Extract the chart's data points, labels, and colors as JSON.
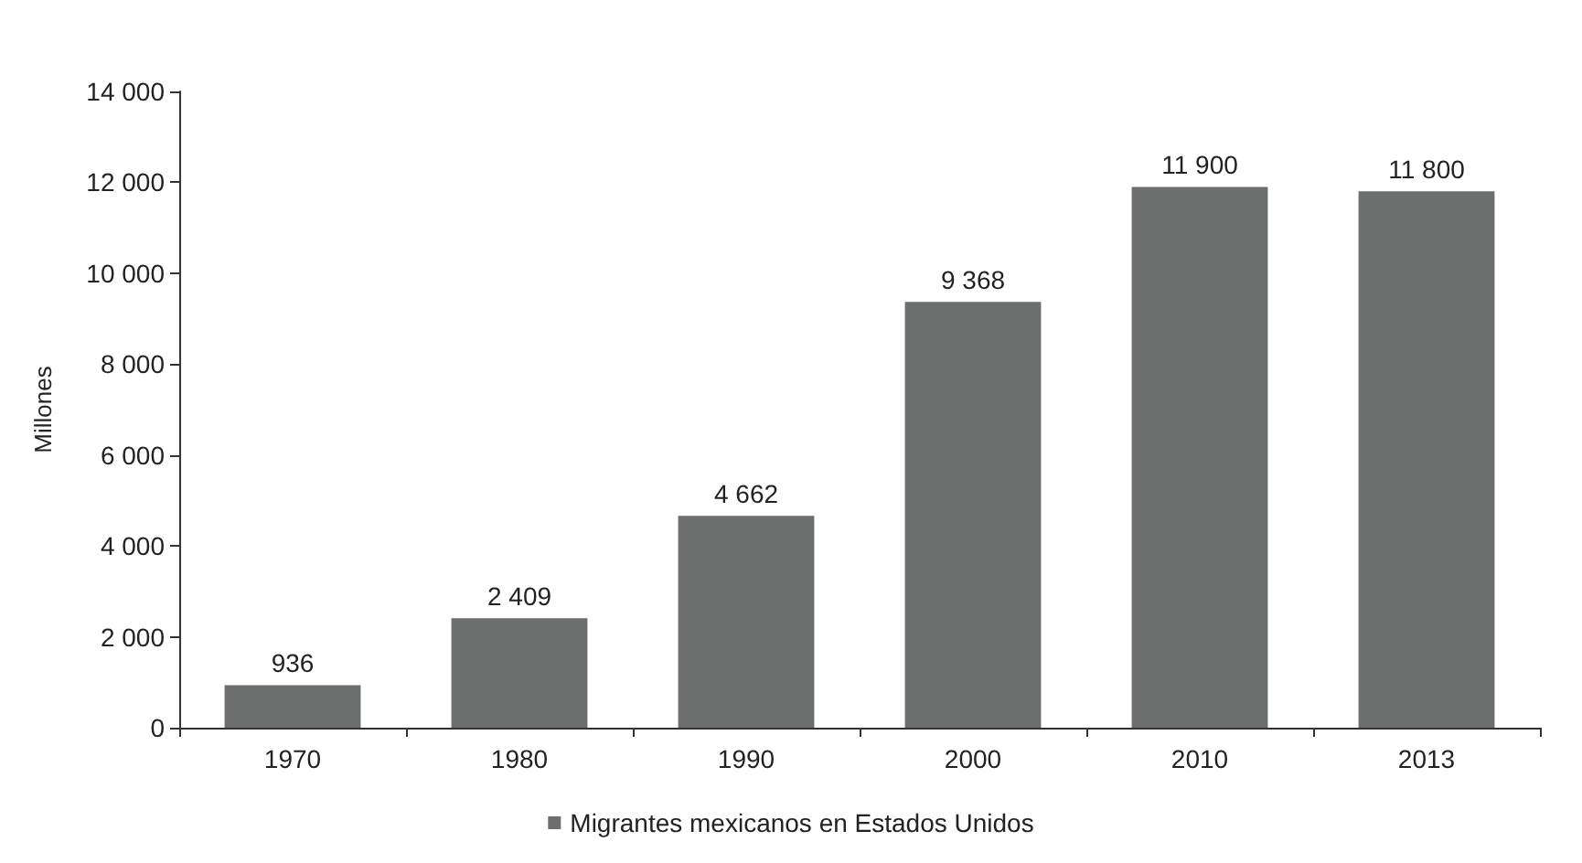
{
  "chart_data": {
    "type": "bar",
    "ylabel": "Millones",
    "categories": [
      "1970",
      "1980",
      "1990",
      "2000",
      "2010",
      "2013"
    ],
    "series": [
      {
        "name": "Migrantes mexicanos en Estados Unidos",
        "color": "#6d6e6e",
        "values": [
          936,
          2409,
          4662,
          9368,
          11900,
          11800
        ],
        "value_labels": [
          "936",
          "2 409",
          "4 662",
          "9 368",
          "11 900",
          "11 800"
        ]
      }
    ],
    "ylim": [
      0,
      14000
    ],
    "yticks": [
      {
        "value": 0,
        "label": "0"
      },
      {
        "value": 2000,
        "label": "2 000"
      },
      {
        "value": 4000,
        "label": "4 000"
      },
      {
        "value": 6000,
        "label": "6 000"
      },
      {
        "value": 8000,
        "label": "8 000"
      },
      {
        "value": 10000,
        "label": "10 000"
      },
      {
        "value": 12000,
        "label": "12 000"
      },
      {
        "value": 14000,
        "label": "14 000"
      }
    ],
    "grid": false,
    "legend": "bottom"
  }
}
